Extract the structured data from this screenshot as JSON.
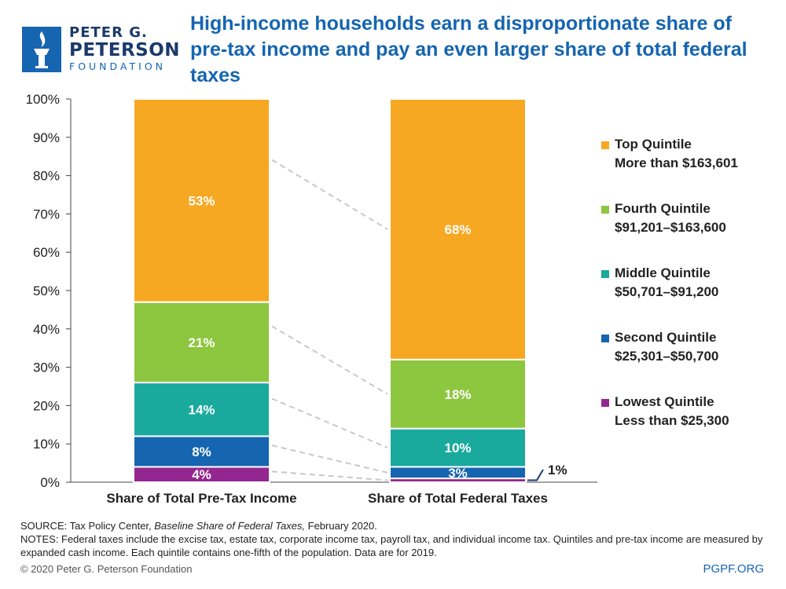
{
  "logo": {
    "line1": "PETER G.",
    "line2": "PETERSON",
    "line3": "FOUNDATION"
  },
  "title": "High-income households earn a disproportionate share of pre-tax income and pay an even larger share of total federal taxes",
  "chart_data": {
    "type": "bar",
    "stacked": true,
    "categories": [
      "Share of Total Pre-Tax Income",
      "Share of Total Federal Taxes"
    ],
    "yticks": [
      "0%",
      "10%",
      "20%",
      "30%",
      "40%",
      "50%",
      "60%",
      "70%",
      "80%",
      "90%",
      "100%"
    ],
    "ylim": [
      0,
      100
    ],
    "series": [
      {
        "name": "Lowest Quintile",
        "range": "Less than $25,300",
        "color": "#93278f",
        "values": [
          4,
          1
        ],
        "labels": [
          "4%",
          "1%"
        ]
      },
      {
        "name": "Second Quintile",
        "range": "$25,301–$50,700",
        "color": "#1565b0",
        "values": [
          8,
          3
        ],
        "labels": [
          "8%",
          "3%"
        ]
      },
      {
        "name": "Middle Quintile",
        "range": "$50,701–$91,200",
        "color": "#1aa99d",
        "values": [
          14,
          10
        ],
        "labels": [
          "14%",
          "10%"
        ]
      },
      {
        "name": "Fourth Quintile",
        "range": "$91,201–$163,600",
        "color": "#8dc63f",
        "values": [
          21,
          18
        ],
        "labels": [
          "21%",
          "18%"
        ]
      },
      {
        "name": "Top Quintile",
        "range": "More than $163,601",
        "color": "#f7a823",
        "values": [
          53,
          68
        ],
        "labels": [
          "53%",
          "68%"
        ]
      }
    ],
    "legend_position": "right"
  },
  "footer": {
    "source_prefix": "SOURCE: Tax Policy Center, ",
    "source_title": "Baseline Share of Federal Taxes,",
    "source_suffix": " February 2020.",
    "notes": "NOTES: Federal taxes include the excise tax, estate tax, corporate income tax, payroll tax, and individual income tax. Quintiles and pre-tax income are measured by expanded cash income. Each quintile contains one-fifth of the population. Data are for 2019.",
    "copyright": "© 2020 Peter G. Peterson Foundation",
    "site": "PGPF.ORG"
  }
}
